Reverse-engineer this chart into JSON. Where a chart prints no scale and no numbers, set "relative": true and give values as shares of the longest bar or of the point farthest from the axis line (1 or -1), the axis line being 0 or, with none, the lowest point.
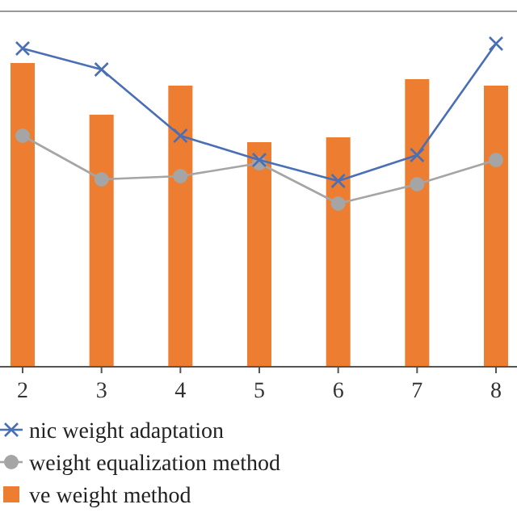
{
  "chart_data": {
    "type": "bar",
    "relative": true,
    "categories": [
      "2",
      "3",
      "4",
      "5",
      "6",
      "7",
      "8"
    ],
    "legend": "bottom",
    "series": [
      {
        "name": "nic weight adaptation",
        "type": "line",
        "color": "#4a6fb5",
        "marker": "cross",
        "values": [
          0.985,
          0.92,
          0.715,
          0.64,
          0.575,
          0.655,
          1
        ]
      },
      {
        "name": "weight equalization method",
        "type": "line",
        "color": "#a5a5a5",
        "marker": "circle",
        "values": [
          0.715,
          0.58,
          0.59,
          0.63,
          0.505,
          0.565,
          0.64
        ]
      },
      {
        "name": "ve weight method",
        "color": "#ed7d31",
        "values": [
          0.94,
          0.78,
          0.87,
          0.695,
          0.71,
          0.89,
          0.87
        ]
      }
    ]
  }
}
